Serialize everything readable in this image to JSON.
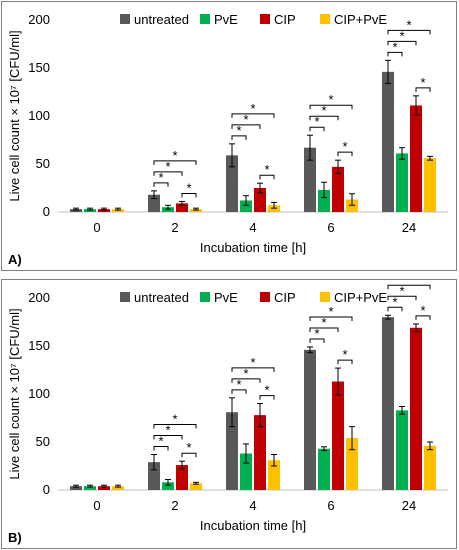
{
  "colors": {
    "untreated": "#595959",
    "PvE": "#00b050",
    "CIP": "#c00000",
    "CIP+PvE": "#ffc000"
  },
  "chart_data": [
    {
      "type": "bar",
      "panel_label": "A)",
      "categories": [
        "0",
        "2",
        "4",
        "6",
        "24"
      ],
      "xlabel": "Incubation time [h]",
      "ylabel": "Live cell count × 10⁷ [CFU/ml]",
      "ylim": [
        0,
        200
      ],
      "yticks": [
        "0",
        "50",
        "100",
        "150",
        "200"
      ],
      "legend_position": "top",
      "series": [
        {
          "name": "untreated",
          "values": [
            3,
            18,
            59,
            67,
            146
          ],
          "errors": [
            1,
            4,
            12,
            13,
            12
          ]
        },
        {
          "name": "PvE",
          "values": [
            3,
            5,
            12,
            23,
            61
          ],
          "errors": [
            1,
            2,
            5,
            8,
            6
          ]
        },
        {
          "name": "CIP",
          "values": [
            3,
            9,
            25,
            47,
            111
          ],
          "errors": [
            1,
            2,
            5,
            7,
            10
          ]
        },
        {
          "name": "CIP+PvE",
          "values": [
            3,
            3,
            7,
            13,
            56
          ],
          "errors": [
            1,
            1,
            3,
            6,
            2
          ]
        }
      ],
      "significance_marker": "*"
    },
    {
      "type": "bar",
      "panel_label": "B)",
      "categories": [
        "0",
        "2",
        "4",
        "6",
        "24"
      ],
      "xlabel": "Incubation time [h]",
      "ylabel": "Live cell count × 10⁷ [CFU/ml]",
      "ylim": [
        0,
        200
      ],
      "yticks": [
        "0",
        "50",
        "100",
        "150",
        "200"
      ],
      "legend_position": "top",
      "series": [
        {
          "name": "untreated",
          "values": [
            4,
            29,
            81,
            146,
            180
          ],
          "errors": [
            1,
            8,
            15,
            3,
            2
          ]
        },
        {
          "name": "PvE",
          "values": [
            4,
            8,
            38,
            43,
            83
          ],
          "errors": [
            1,
            3,
            10,
            2,
            4
          ]
        },
        {
          "name": "CIP",
          "values": [
            4,
            26,
            78,
            113,
            169
          ],
          "errors": [
            1,
            4,
            12,
            14,
            4
          ]
        },
        {
          "name": "CIP+PvE",
          "values": [
            4,
            7,
            31,
            54,
            46
          ],
          "errors": [
            1,
            1,
            6,
            12,
            4
          ]
        }
      ],
      "significance_marker": "*"
    }
  ]
}
